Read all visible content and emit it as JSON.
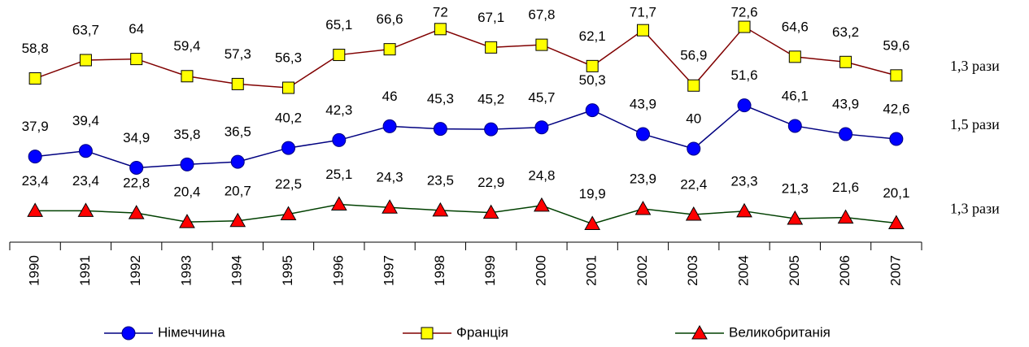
{
  "chart_data": {
    "type": "line",
    "categories": [
      "1990",
      "1991",
      "1992",
      "1993",
      "1994",
      "1995",
      "1996",
      "1997",
      "1998",
      "1999",
      "2000",
      "2001",
      "2002",
      "2003",
      "2004",
      "2005",
      "2006",
      "2007"
    ],
    "series": [
      {
        "name": "Німеччина",
        "color": "#000080",
        "marker": "circle",
        "marker_color": "#0000ff",
        "values": [
          37.9,
          39.4,
          34.9,
          35.8,
          36.5,
          40.2,
          42.3,
          46,
          45.3,
          45.2,
          45.7,
          50.3,
          43.9,
          40,
          51.6,
          46.1,
          43.9,
          42.6
        ],
        "value_labels": [
          "37,9",
          "39,4",
          "34,9",
          "35,8",
          "36,5",
          "40,2",
          "42,3",
          "46",
          "45,3",
          "45,2",
          "45,7",
          "50,3",
          "43,9",
          "40",
          "51,6",
          "46,1",
          "43,9",
          "42,6"
        ]
      },
      {
        "name": "Франція",
        "color": "#800000",
        "marker": "square",
        "marker_color": "#ffff00",
        "values": [
          58.8,
          63.7,
          64,
          59.4,
          57.3,
          56.3,
          65.1,
          66.6,
          72,
          67.1,
          67.8,
          62.1,
          71.7,
          56.9,
          72.6,
          64.6,
          63.2,
          59.6
        ],
        "value_labels": [
          "58,8",
          "63,7",
          "64",
          "59,4",
          "57,3",
          "56,3",
          "65,1",
          "66,6",
          "72",
          "67,1",
          "67,8",
          "62,1",
          "71,7",
          "56,9",
          "72,6",
          "64,6",
          "63,2",
          "59,6"
        ]
      },
      {
        "name": "Великобританія",
        "color": "#004000",
        "marker": "triangle",
        "marker_color": "#ff0000",
        "values": [
          23.4,
          23.4,
          22.8,
          20.4,
          20.7,
          22.5,
          25.1,
          24.3,
          23.5,
          22.9,
          24.8,
          19.9,
          23.9,
          22.4,
          23.3,
          21.3,
          21.6,
          20.1
        ],
        "value_labels": [
          "23,4",
          "23,4",
          "22,8",
          "20,4",
          "20,7",
          "22,5",
          "25,1",
          "24,3",
          "23,5",
          "22,9",
          "24,8",
          "19,9",
          "23,9",
          "22,4",
          "23,3",
          "21,3",
          "21,6",
          "20,1"
        ]
      }
    ],
    "annotations": [
      "1,3 рази",
      "1,5 рази",
      "1,3 рази"
    ],
    "ylim": [
      15,
      75
    ]
  }
}
